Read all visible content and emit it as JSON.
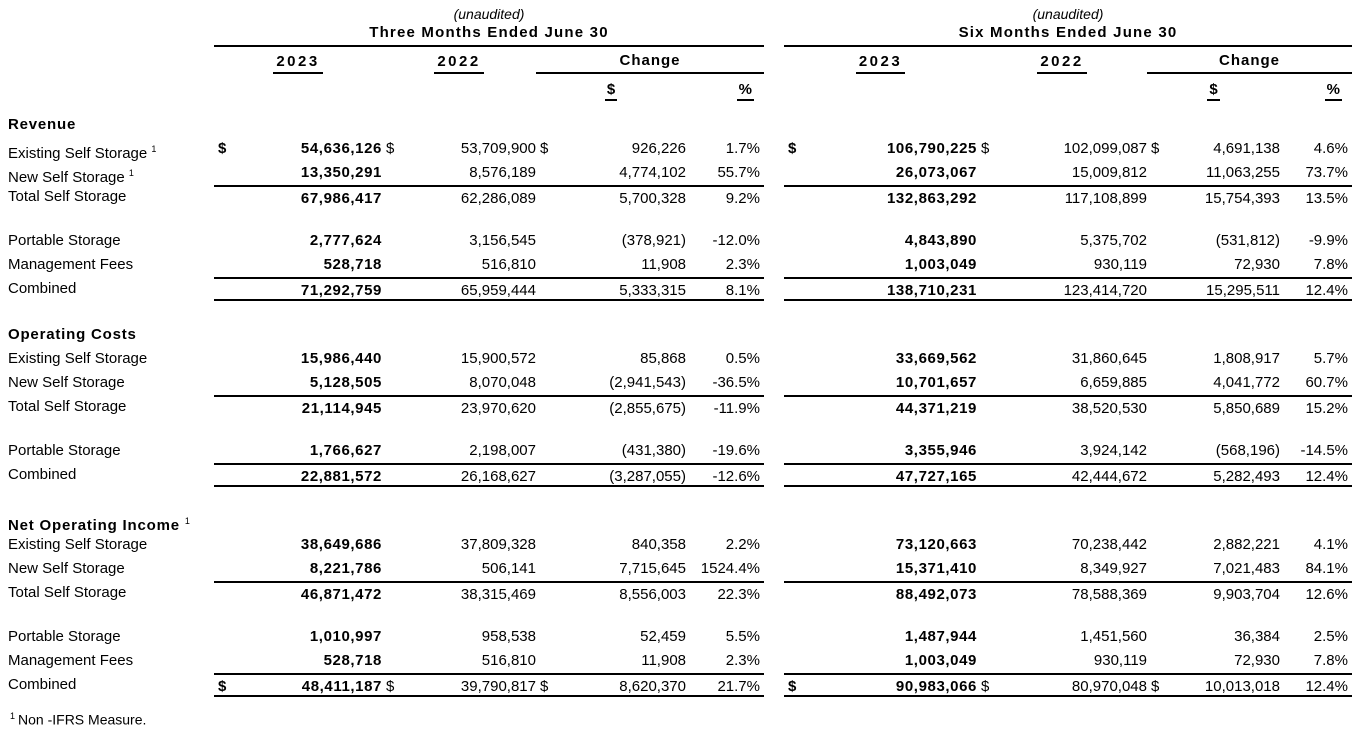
{
  "header": {
    "unaudited": "(unaudited)",
    "periods": [
      "Three Months Ended June 30",
      "Six Months Ended June 30"
    ],
    "col_2023": "2023",
    "col_2022": "2022",
    "col_change": "Change",
    "col_dollar": "$",
    "col_percent": "%"
  },
  "sections": [
    {
      "title": "Revenue",
      "sup": "",
      "rows": [
        {
          "label": "Existing Self Storage",
          "sup": "1",
          "t3": [
            "$",
            "54,636,126",
            "$",
            "53,709,900",
            "$",
            "926,226",
            "1.7%"
          ],
          "t6": [
            "$",
            "106,790,225",
            "$",
            "102,099,087",
            "$",
            "4,691,138",
            "4.6%"
          ]
        },
        {
          "label": "New Self Storage",
          "sup": "1",
          "t3": [
            "",
            "13,350,291",
            "",
            "8,576,189",
            "",
            "4,774,102",
            "55.7%"
          ],
          "t6": [
            "",
            "26,073,067",
            "",
            "15,009,812",
            "",
            "11,063,255",
            "73.7%"
          ]
        },
        {
          "label": "Total Self Storage",
          "rule_top": true,
          "t3": [
            "",
            "67,986,417",
            "",
            "62,286,089",
            "",
            "5,700,328",
            "9.2%"
          ],
          "t6": [
            "",
            "132,863,292",
            "",
            "117,108,899",
            "",
            "15,754,393",
            "13.5%"
          ]
        },
        {
          "label": "Portable Storage",
          "gap_before": true,
          "t3": [
            "",
            "2,777,624",
            "",
            "3,156,545",
            "",
            "(378,921)",
            "-12.0%"
          ],
          "t6": [
            "",
            "4,843,890",
            "",
            "5,375,702",
            "",
            "(531,812)",
            "-9.9%"
          ]
        },
        {
          "label": "Management Fees",
          "t3": [
            "",
            "528,718",
            "",
            "516,810",
            "",
            "11,908",
            "2.3%"
          ],
          "t6": [
            "",
            "1,003,049",
            "",
            "930,119",
            "",
            "72,930",
            "7.8%"
          ]
        },
        {
          "label": "Combined",
          "rule_top": true,
          "rule_bottom": true,
          "t3": [
            "",
            "71,292,759",
            "",
            "65,959,444",
            "",
            "5,333,315",
            "8.1%"
          ],
          "t6": [
            "",
            "138,710,231",
            "",
            "123,414,720",
            "",
            "15,295,511",
            "12.4%"
          ]
        }
      ]
    },
    {
      "title": "Operating Costs",
      "sup": "",
      "rows": [
        {
          "label": "Existing Self Storage",
          "t3": [
            "",
            "15,986,440",
            "",
            "15,900,572",
            "",
            "85,868",
            "0.5%"
          ],
          "t6": [
            "",
            "33,669,562",
            "",
            "31,860,645",
            "",
            "1,808,917",
            "5.7%"
          ]
        },
        {
          "label": "New Self Storage",
          "t3": [
            "",
            "5,128,505",
            "",
            "8,070,048",
            "",
            "(2,941,543)",
            "-36.5%"
          ],
          "t6": [
            "",
            "10,701,657",
            "",
            "6,659,885",
            "",
            "4,041,772",
            "60.7%"
          ]
        },
        {
          "label": "Total Self Storage",
          "rule_top": true,
          "t3": [
            "",
            "21,114,945",
            "",
            "23,970,620",
            "",
            "(2,855,675)",
            "-11.9%"
          ],
          "t6": [
            "",
            "44,371,219",
            "",
            "38,520,530",
            "",
            "5,850,689",
            "15.2%"
          ]
        },
        {
          "label": "Portable Storage",
          "gap_before": true,
          "t3": [
            "",
            "1,766,627",
            "",
            "2,198,007",
            "",
            "(431,380)",
            "-19.6%"
          ],
          "t6": [
            "",
            "3,355,946",
            "",
            "3,924,142",
            "",
            "(568,196)",
            "-14.5%"
          ]
        },
        {
          "label": "Combined",
          "rule_top": true,
          "rule_bottom": true,
          "t3": [
            "",
            "22,881,572",
            "",
            "26,168,627",
            "",
            "(3,287,055)",
            "-12.6%"
          ],
          "t6": [
            "",
            "47,727,165",
            "",
            "42,444,672",
            "",
            "5,282,493",
            "12.4%"
          ]
        }
      ]
    },
    {
      "title": "Net Operating Income",
      "sup": "1",
      "rows": [
        {
          "label": "Existing Self Storage",
          "t3": [
            "",
            "38,649,686",
            "",
            "37,809,328",
            "",
            "840,358",
            "2.2%"
          ],
          "t6": [
            "",
            "73,120,663",
            "",
            "70,238,442",
            "",
            "2,882,221",
            "4.1%"
          ]
        },
        {
          "label": "New Self Storage",
          "t3": [
            "",
            "8,221,786",
            "",
            "506,141",
            "",
            "7,715,645",
            "1524.4%"
          ],
          "t6": [
            "",
            "15,371,410",
            "",
            "8,349,927",
            "",
            "7,021,483",
            "84.1%"
          ]
        },
        {
          "label": "Total Self Storage",
          "rule_top": true,
          "t3": [
            "",
            "46,871,472",
            "",
            "38,315,469",
            "",
            "8,556,003",
            "22.3%"
          ],
          "t6": [
            "",
            "88,492,073",
            "",
            "78,588,369",
            "",
            "9,903,704",
            "12.6%"
          ]
        },
        {
          "label": "Portable Storage",
          "gap_before": true,
          "t3": [
            "",
            "1,010,997",
            "",
            "958,538",
            "",
            "52,459",
            "5.5%"
          ],
          "t6": [
            "",
            "1,487,944",
            "",
            "1,451,560",
            "",
            "36,384",
            "2.5%"
          ]
        },
        {
          "label": "Management Fees",
          "t3": [
            "",
            "528,718",
            "",
            "516,810",
            "",
            "11,908",
            "2.3%"
          ],
          "t6": [
            "",
            "1,003,049",
            "",
            "930,119",
            "",
            "72,930",
            "7.8%"
          ]
        },
        {
          "label": "Combined",
          "rule_top": true,
          "rule_bottom": true,
          "t3": [
            "$",
            "48,411,187",
            "$",
            "39,790,817",
            "$",
            "8,620,370",
            "21.7%"
          ],
          "t6": [
            "$",
            "90,983,066",
            "$",
            "80,970,048",
            "$",
            "10,013,018",
            "12.4%"
          ]
        }
      ]
    }
  ],
  "footnote": {
    "sup": "1",
    "text": "Non -IFRS Measure."
  }
}
